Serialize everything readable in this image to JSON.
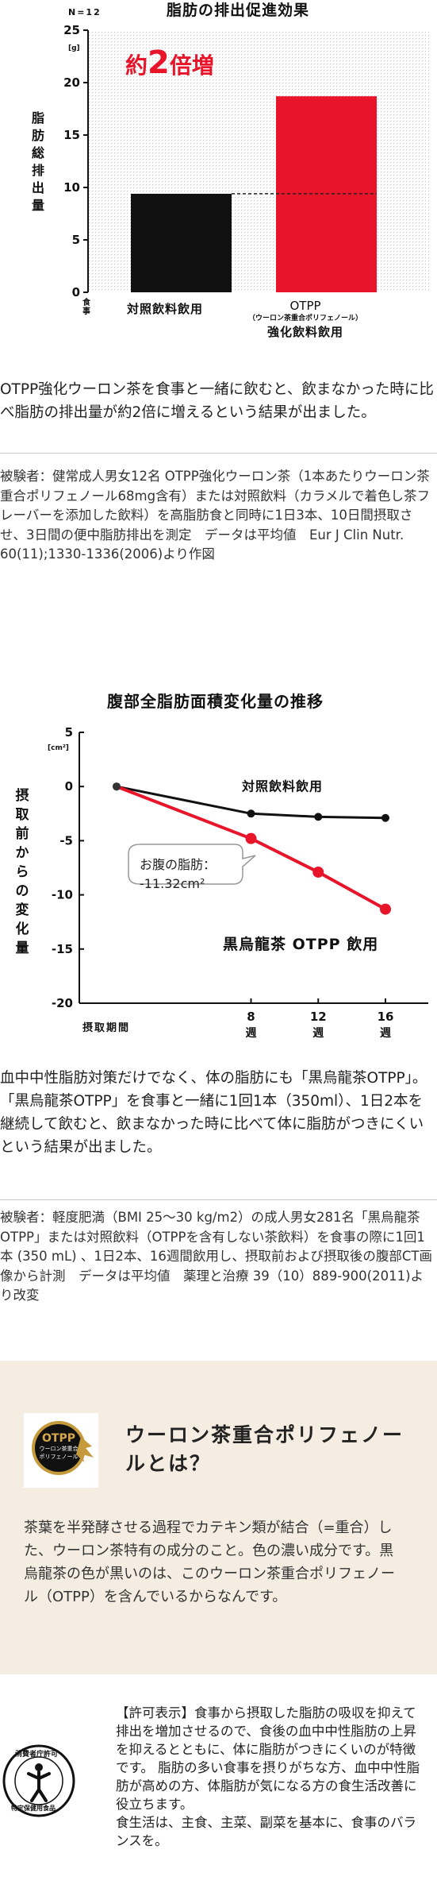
{
  "chart1": {
    "title": "脂肪の排出促進効果",
    "n_label": "N=12",
    "unit": "[g]",
    "ylabel": "脂肪総排出量",
    "badge": "約2倍増",
    "badge_pre": "約",
    "badge_num": "2",
    "badge_post": "倍増",
    "x_axis_label": "食事",
    "chart_data": {
      "type": "bar",
      "title": "脂肪の排出促進効果",
      "categories": [
        "対照飲料飲用",
        "OTPP（ウーロン茶重合ポリフェノール）強化飲料飲用"
      ],
      "values": [
        9.4,
        18.7
      ],
      "colors": [
        "#111111",
        "#e8142a"
      ],
      "ylabel": "脂肪総排出量",
      "yunit": "[g]",
      "ylim": [
        0,
        25
      ],
      "yticks": [
        0,
        5,
        10,
        15,
        20,
        25
      ],
      "grid": false
    },
    "cat1_label": "対照飲料飲用",
    "cat2_line1": "OTPP",
    "cat2_line2": "（ウーロン茶重合ポリフェノール）",
    "cat2_line3": "強化飲料飲用"
  },
  "para1": "OTPP強化ウーロン茶を食事と一緒に飲むと、飲まなかった時に比べ脂肪の排出量が約2倍に増えるという結果が出ました。",
  "note1": "被験者：健常成人男女12名 OTPP強化ウーロン茶（1本あたりウーロン茶重合ポリフェノール68mg含有）または対照飲料（カラメルで着色し茶フレーバーを添加した飲料）を高脂肪食と同時に1日3本、10日間摂取させ、3日間の便中脂肪排出を測定　データは平均値　Eur J Clin Nutr. 60(11);1330-1336(2006)より作図",
  "chart2": {
    "title": "腹部全脂肪面積変化量の推移",
    "unit": "[cm²]",
    "ylabel": "摂取前からの変化量",
    "xlabel": "摂取期間",
    "callout_line1": "お腹の脂肪：",
    "callout_line2": "-11.32cm²",
    "chart_data": {
      "type": "line",
      "title": "腹部全脂肪面積変化量の推移",
      "x": [
        0,
        8,
        12,
        16
      ],
      "xtick_labels": [
        "8週",
        "12週",
        "16週"
      ],
      "ylim": [
        -20,
        5
      ],
      "yticks": [
        5,
        0,
        -5,
        -10,
        -15,
        -20
      ],
      "ylabel": "摂取前からの変化量",
      "yunit": "[cm²]",
      "series": [
        {
          "name": "対照飲料飲用",
          "values": [
            0,
            -2.5,
            -2.8,
            -2.9
          ],
          "color": "#111111"
        },
        {
          "name": "黒烏龍茶 OTPP 飲用",
          "values": [
            0,
            -4.8,
            -7.9,
            -11.32
          ],
          "color": "#e8142a"
        }
      ],
      "grid": false
    }
  },
  "para2": "血中中性脂肪対策だけでなく、体の脂肪にも「黒烏龍茶OTPP」。「黒烏龍茶OTPP」を食事と一緒に1回1本（350ml）、1日2本を継続して飲むと、飲まなかった時に比べて体に脂肪がつきにくいという結果が出ました。",
  "note2": "被験者：軽度肥満（BMI 25～30 kg/m2）の成人男女281名「黒烏龍茶OTPP」または対照飲料（OTPPを含有しない茶飲料）を食事の際に1回1本 (350 mL) 、1日2本、16週間飲用し、摂取前および摂取後の腹部CT画像から計測　データは平均値　薬理と治療 39（10）889-900(2011)より改変",
  "info": {
    "badge_text1": "OTPP",
    "badge_text2": "ウーロン茶重合",
    "badge_text3": "ポリフェノール",
    "title": "ウーロン茶重合ポリフェノールとは？",
    "body": "茶葉を半発酵させる過程でカテキン類が結合（=重合）した、ウーロン茶特有の成分のこと。色の濃い成分です。黒烏龍茶の色が黒いのは、このウーロン茶重合ポリフェノール（OTPP）を含んでいるからなんです。"
  },
  "permit": {
    "seal_top": "消費者庁許可",
    "seal_bottom": "特定保健用食品",
    "text": "【許可表示】食事から摂取した脂肪の吸収を抑えて排出を増加させるので、食後の血中中性脂肪の上昇を抑えるとともに、体に脂肪がつきにくいのが特徴です。 脂肪の多い食事を摂りがちな方、血中中性脂肪が高めの方、体脂肪が気になる方の食生活改善に役立ちます。\n食生活は、主食、主菜、副菜を基本に、食事のバランスを。"
  }
}
